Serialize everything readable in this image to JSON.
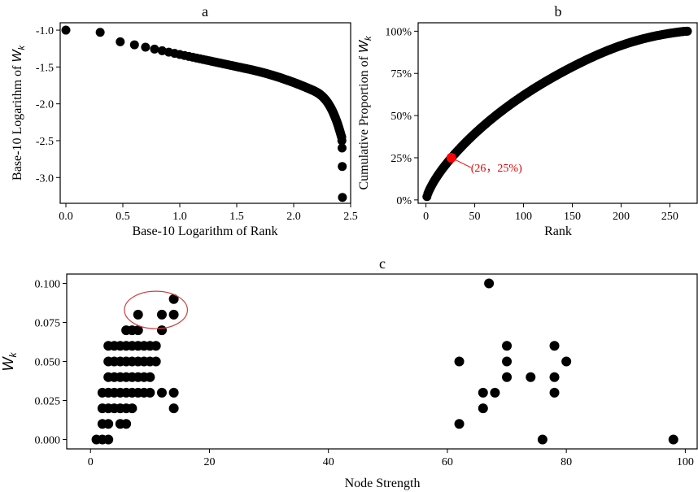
{
  "chart_data": [
    {
      "type": "scatter",
      "title": "a",
      "xlabel": "Base-10 Logarithm of Rank",
      "ylabel": {
        "prefix": "Base-10 Logarithm of ",
        "sym": "W",
        "sub": "k"
      },
      "xlim": [
        -0.05,
        2.5
      ],
      "ylim": [
        -3.35,
        -0.9
      ],
      "xticks": [
        0.0,
        0.5,
        1.0,
        1.5,
        2.0,
        2.5
      ],
      "xtick_labels": [
        "0.0",
        "0.5",
        "1.0",
        "1.5",
        "2.0",
        "2.5"
      ],
      "yticks": [
        -1.0,
        -1.5,
        -2.0,
        -2.5,
        -3.0
      ],
      "ytick_labels": [
        "-1.0",
        "-1.5",
        "-2.0",
        "-2.5",
        "-3.0"
      ],
      "point_rule": "log10 of the ranked W_k values (rank = 1..268)"
    },
    {
      "type": "line",
      "title": "b",
      "xlabel": "Rank",
      "ylabel": {
        "prefix": "Cumulative Proportion of ",
        "sym": "W",
        "sub": "k"
      },
      "xlim": [
        -8,
        278
      ],
      "ylim": [
        -0.02,
        1.05
      ],
      "xticks": [
        0,
        50,
        100,
        150,
        200,
        250
      ],
      "xtick_labels": [
        "0",
        "50",
        "100",
        "150",
        "200",
        "250"
      ],
      "yticks": [
        0,
        0.25,
        0.5,
        0.75,
        1.0
      ],
      "ytick_labels": [
        "0%",
        "25%",
        "50%",
        "75%",
        "100%"
      ],
      "highlight": {
        "x": 26,
        "y": 0.25,
        "label": "(26，25%)",
        "color": "#ff0000"
      },
      "point_rule": "cumulative share of W_k by rank (rank = 1..268)"
    },
    {
      "type": "scatter",
      "title": "c",
      "xlabel": "Node Strength",
      "ylabel": {
        "prefix": "",
        "sym": "W",
        "sub": "k"
      },
      "xlim": [
        -4,
        102
      ],
      "ylim": [
        -0.006,
        0.106
      ],
      "xticks": [
        0,
        20,
        40,
        60,
        80,
        100
      ],
      "xtick_labels": [
        "0",
        "20",
        "40",
        "60",
        "80",
        "100"
      ],
      "yticks": [
        0.0,
        0.025,
        0.05,
        0.075,
        0.1
      ],
      "ytick_labels": [
        "0.000",
        "0.025",
        "0.050",
        "0.075",
        "0.100"
      ],
      "highlight_ellipse": {
        "cx": 11,
        "cy": 0.083,
        "rx": 5.3,
        "ry": 0.012,
        "color": "#d04040"
      },
      "points": [
        [
          1,
          0
        ],
        [
          2,
          0
        ],
        [
          2,
          0.01
        ],
        [
          2,
          0.02
        ],
        [
          2,
          0.03
        ],
        [
          3,
          0
        ],
        [
          3,
          0.01
        ],
        [
          3,
          0.02
        ],
        [
          3,
          0.03
        ],
        [
          3,
          0.04
        ],
        [
          3,
          0.05
        ],
        [
          3,
          0.06
        ],
        [
          4,
          0.02
        ],
        [
          4,
          0.03
        ],
        [
          4,
          0.04
        ],
        [
          4,
          0.05
        ],
        [
          4,
          0.06
        ],
        [
          5,
          0.01
        ],
        [
          5,
          0.02
        ],
        [
          5,
          0.03
        ],
        [
          5,
          0.04
        ],
        [
          5,
          0.05
        ],
        [
          5,
          0.06
        ],
        [
          6,
          0.01
        ],
        [
          6,
          0.02
        ],
        [
          6,
          0.03
        ],
        [
          6,
          0.04
        ],
        [
          6,
          0.05
        ],
        [
          6,
          0.06
        ],
        [
          6,
          0.07
        ],
        [
          7,
          0.02
        ],
        [
          7,
          0.03
        ],
        [
          7,
          0.04
        ],
        [
          7,
          0.05
        ],
        [
          7,
          0.06
        ],
        [
          7,
          0.07
        ],
        [
          8,
          0.03
        ],
        [
          8,
          0.04
        ],
        [
          8,
          0.05
        ],
        [
          8,
          0.06
        ],
        [
          8,
          0.07
        ],
        [
          8,
          0.08
        ],
        [
          9,
          0.03
        ],
        [
          9,
          0.04
        ],
        [
          9,
          0.05
        ],
        [
          9,
          0.06
        ],
        [
          10,
          0.03
        ],
        [
          10,
          0.04
        ],
        [
          10,
          0.05
        ],
        [
          10,
          0.06
        ],
        [
          11,
          0.05
        ],
        [
          11,
          0.06
        ],
        [
          12,
          0.03
        ],
        [
          12,
          0.07
        ],
        [
          12,
          0.08
        ],
        [
          14,
          0.02
        ],
        [
          14,
          0.03
        ],
        [
          14,
          0.08
        ],
        [
          14,
          0.09
        ],
        [
          62,
          0.01
        ],
        [
          62,
          0.05
        ],
        [
          66,
          0.02
        ],
        [
          66,
          0.03
        ],
        [
          67,
          0.1
        ],
        [
          68,
          0.03
        ],
        [
          70,
          0.04
        ],
        [
          70,
          0.05
        ],
        [
          70,
          0.06
        ],
        [
          74,
          0.04
        ],
        [
          76,
          0
        ],
        [
          78,
          0.03
        ],
        [
          78,
          0.04
        ],
        [
          78,
          0.06
        ],
        [
          80,
          0.05
        ],
        [
          98,
          0
        ]
      ]
    }
  ]
}
